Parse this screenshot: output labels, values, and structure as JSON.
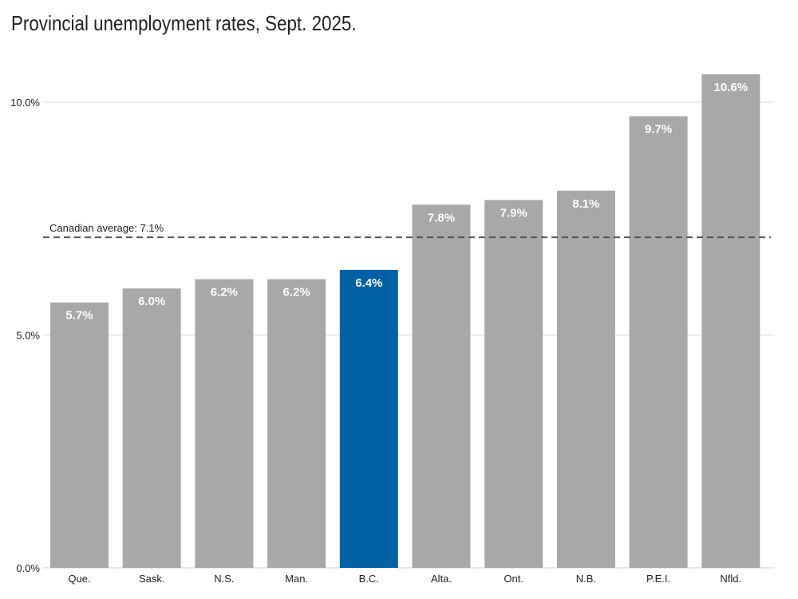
{
  "chart_data": {
    "type": "bar",
    "title": "Provincial unemployment rates, Sept. 2025.",
    "xlabel": "",
    "ylabel": "",
    "categories": [
      "Que.",
      "Sask.",
      "N.S.",
      "Man.",
      "B.C.",
      "Alta.",
      "Ont.",
      "N.B.",
      "P.E.I.",
      "Nfld."
    ],
    "values": [
      5.7,
      6.0,
      6.2,
      6.2,
      6.4,
      7.8,
      7.9,
      8.1,
      9.7,
      10.6
    ],
    "data_labels": [
      "5.7%",
      "6.0%",
      "6.2%",
      "6.2%",
      "6.4%",
      "7.8%",
      "7.9%",
      "8.1%",
      "9.7%",
      "10.6%"
    ],
    "highlight_index": 4,
    "ylim": [
      0,
      10.6
    ],
    "yticks": [
      0,
      5,
      10
    ],
    "ytick_labels": [
      "0.0%",
      "5.0%",
      "10.0%"
    ],
    "grid": true,
    "reference_line": {
      "value": 7.1,
      "label": "Canadian average: 7.1%"
    },
    "colors": {
      "bar": "#a7a8aa",
      "highlight": "#0061a3",
      "label": "#ffffff",
      "grid": "#d9d9d9",
      "reference": "#555555",
      "text": "#222222"
    }
  }
}
